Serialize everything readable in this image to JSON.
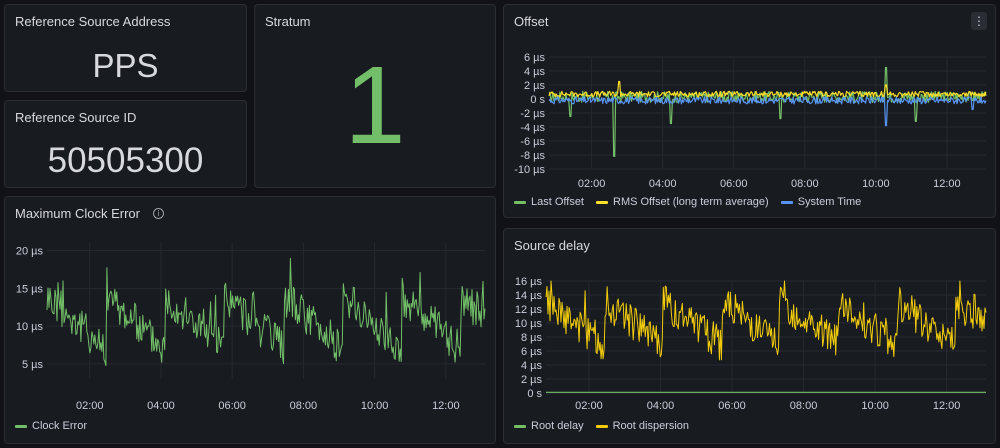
{
  "panels": {
    "ref_addr": {
      "title": "Reference Source Address",
      "value": "PPS"
    },
    "ref_id": {
      "title": "Reference Source ID",
      "value": "50505300"
    },
    "stratum": {
      "title": "Stratum",
      "value": "1",
      "color": "#73bf69"
    },
    "offset": {
      "title": "Offset",
      "menu_glyph": "⋮"
    },
    "max_clock_error": {
      "title": "Maximum Clock Error",
      "info_glyph": "i"
    },
    "source_delay": {
      "title": "Source delay"
    }
  },
  "chart_data": [
    {
      "id": "offset",
      "type": "line",
      "x_ticks": [
        "02:00",
        "04:00",
        "06:00",
        "08:00",
        "10:00",
        "12:00"
      ],
      "y_ticks": [
        "6 µs",
        "4 µs",
        "2 µs",
        "0 s",
        "-2 µs",
        "-4 µs",
        "-6 µs",
        "-8 µs",
        "-10 µs"
      ],
      "ylim": [
        -10,
        6
      ],
      "grid": true,
      "legend_position": "bottom-left",
      "series": [
        {
          "name": "Last Offset",
          "color": "#73bf69",
          "baseline": 0.3,
          "noise": 0.8,
          "spikes": [
            [
              0.15,
              -8.2
            ],
            [
              0.28,
              -3.5
            ],
            [
              0.53,
              -2.8
            ],
            [
              0.77,
              4.5
            ],
            [
              0.84,
              -3.2
            ],
            [
              0.05,
              -2.5
            ]
          ]
        },
        {
          "name": "RMS Offset (long term average)",
          "color": "#fade2a",
          "baseline": 0.7,
          "noise": 0.4,
          "spikes": [
            [
              0.16,
              2.5
            ],
            [
              0.77,
              2.0
            ]
          ]
        },
        {
          "name": "System Time",
          "color": "#5794f2",
          "baseline": -0.2,
          "noise": 0.5,
          "spikes": [
            [
              0.77,
              -3.8
            ],
            [
              0.97,
              -1.5
            ]
          ]
        }
      ]
    },
    {
      "id": "max_clock_error",
      "type": "line",
      "x_ticks": [
        "02:00",
        "04:00",
        "06:00",
        "08:00",
        "10:00",
        "12:00"
      ],
      "y_ticks": [
        "20 µs",
        "15 µs",
        "10 µs",
        "5 µs"
      ],
      "ylim": [
        3,
        21
      ],
      "grid": true,
      "legend_position": "bottom-left",
      "series": [
        {
          "name": "Clock Error",
          "color": "#73bf69",
          "low": 7,
          "high": 14,
          "period": 0.135
        }
      ]
    },
    {
      "id": "source_delay",
      "type": "line",
      "x_ticks": [
        "02:00",
        "04:00",
        "06:00",
        "08:00",
        "10:00",
        "12:00"
      ],
      "y_ticks": [
        "16 µs",
        "14 µs",
        "12 µs",
        "10 µs",
        "8 µs",
        "6 µs",
        "4 µs",
        "2 µs",
        "0 s"
      ],
      "ylim": [
        0,
        16
      ],
      "grid": true,
      "legend_position": "bottom-left",
      "series": [
        {
          "name": "Root delay",
          "color": "#73bf69",
          "flat": 0.1
        },
        {
          "name": "Root dispersion",
          "color": "#f2cc0c",
          "low": 7,
          "high": 13,
          "period": 0.133
        }
      ]
    }
  ]
}
